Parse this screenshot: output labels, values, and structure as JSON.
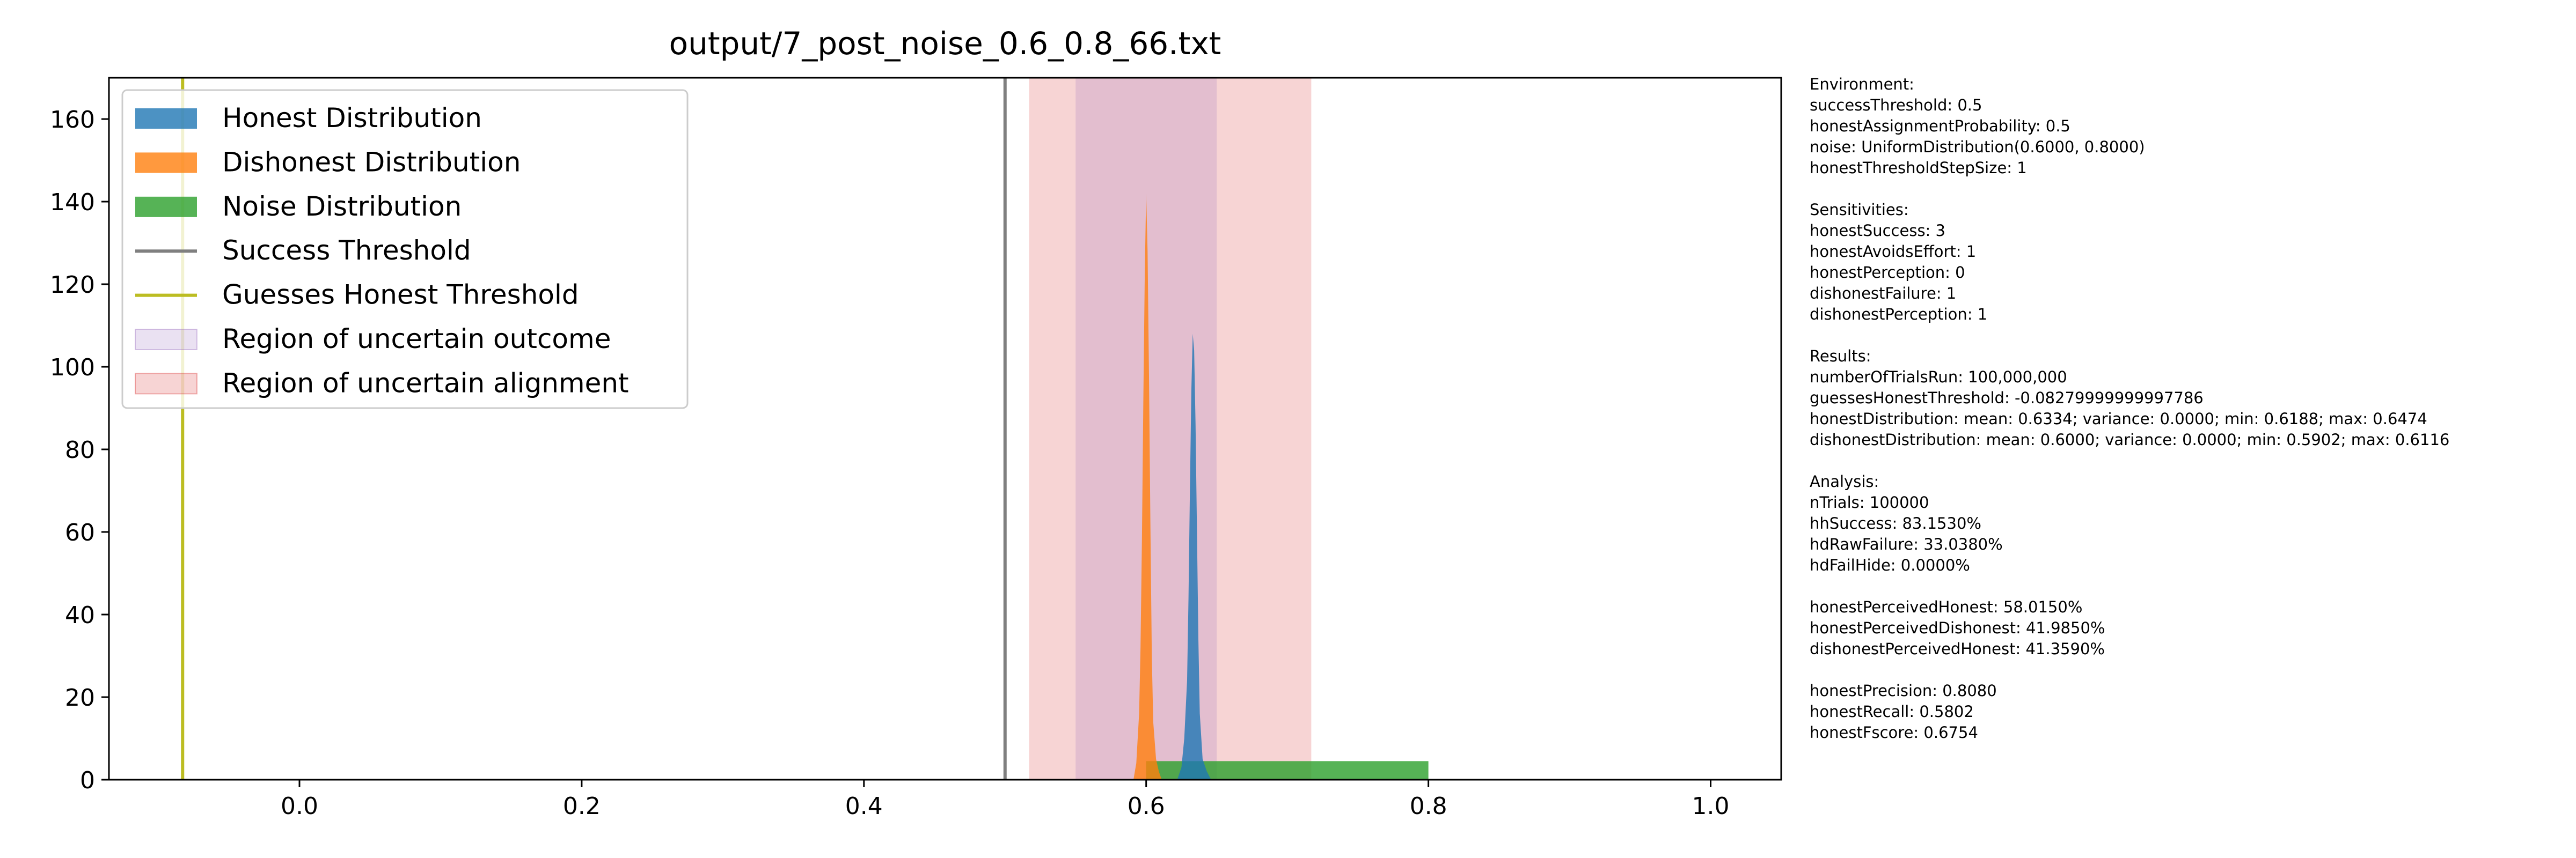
{
  "chart_data": {
    "type": "histogram",
    "title": "output/7_post_noise_0.6_0.8_66.txt",
    "xlabel": "",
    "ylabel": "",
    "xlim": [
      -0.135,
      1.05
    ],
    "ylim": [
      0,
      170
    ],
    "x_ticks": [
      0.0,
      0.2,
      0.4,
      0.6,
      0.8,
      1.0
    ],
    "x_tick_labels": [
      "0.0",
      "0.2",
      "0.4",
      "0.6",
      "0.8",
      "1.0"
    ],
    "y_ticks": [
      0,
      20,
      40,
      60,
      80,
      100,
      120,
      140,
      160
    ],
    "y_tick_labels": [
      "0",
      "20",
      "40",
      "60",
      "80",
      "100",
      "120",
      "140",
      "160"
    ],
    "grid": false,
    "legend_position": "top-left",
    "legend": [
      {
        "label": "Honest Distribution",
        "kind": "patch",
        "color": "#1f77b4"
      },
      {
        "label": "Dishonest Distribution",
        "kind": "patch",
        "color": "#ff7f0e"
      },
      {
        "label": "Noise Distribution",
        "kind": "patch",
        "color": "#2ca02c"
      },
      {
        "label": "Success Threshold",
        "kind": "line",
        "color": "#7f7f7f"
      },
      {
        "label": "Guesses Honest Threshold",
        "kind": "line",
        "color": "#bcbd22"
      },
      {
        "label": "Region of uncertain outcome",
        "kind": "span",
        "color": "#9467bd"
      },
      {
        "label": "Region of uncertain alignment",
        "kind": "span",
        "color": "#d62728"
      }
    ],
    "vlines": [
      {
        "name": "Success Threshold",
        "x": 0.5,
        "color": "#7f7f7f"
      },
      {
        "name": "Guesses Honest Threshold",
        "x": -0.0828,
        "color": "#bcbd22"
      }
    ],
    "spans": [
      {
        "name": "Region of uncertain alignment",
        "x0": 0.517,
        "x1": 0.717,
        "color": "#d62728",
        "alpha": 0.2
      },
      {
        "name": "Region of uncertain outcome",
        "x0": 0.55,
        "x1": 0.65,
        "color": "#9467bd",
        "alpha": 0.2
      }
    ],
    "series": [
      {
        "name": "Noise Distribution",
        "color": "#2ca02c",
        "alpha": 0.8,
        "bins": [
          {
            "x0": 0.6,
            "x1": 0.8,
            "y": 4.5
          }
        ]
      },
      {
        "name": "Dishonest Distribution",
        "color": "#ff7f0e",
        "alpha": 0.8,
        "peak_x": 0.6,
        "x": [
          0.591,
          0.593,
          0.595,
          0.596,
          0.597,
          0.598,
          0.599,
          0.6,
          0.601,
          0.602,
          0.603,
          0.604,
          0.605,
          0.607,
          0.609,
          0.611
        ],
        "y": [
          0,
          4,
          16,
          32,
          58,
          92,
          122,
          142,
          128,
          98,
          62,
          30,
          14,
          5,
          2,
          0
        ]
      },
      {
        "name": "Honest Distribution",
        "color": "#1f77b4",
        "alpha": 0.8,
        "peak_x": 0.633,
        "x": [
          0.622,
          0.625,
          0.627,
          0.629,
          0.63,
          0.631,
          0.632,
          0.633,
          0.634,
          0.635,
          0.636,
          0.637,
          0.638,
          0.64,
          0.643,
          0.646
        ],
        "y": [
          0,
          3,
          10,
          24,
          44,
          70,
          94,
          108,
          104,
          86,
          60,
          34,
          16,
          5,
          2,
          0
        ]
      }
    ]
  },
  "info_panel": [
    {
      "lines": [
        "Environment:",
        "successThreshold: 0.5",
        "honestAssignmentProbability: 0.5",
        "noise: UniformDistribution(0.6000, 0.8000)",
        "honestThresholdStepSize: 1"
      ]
    },
    {
      "lines": [
        "Sensitivities:",
        "honestSuccess: 3",
        "honestAvoidsEffort: 1",
        "honestPerception: 0",
        "dishonestFailure: 1",
        "dishonestPerception: 1"
      ]
    },
    {
      "lines": [
        "Results:",
        "numberOfTrialsRun: 100,000,000",
        "guessesHonestThreshold: -0.08279999999997786",
        "honestDistribution: mean: 0.6334; variance: 0.0000; min: 0.6188; max: 0.6474",
        "dishonestDistribution: mean: 0.6000; variance: 0.0000; min: 0.5902; max: 0.6116"
      ]
    },
    {
      "lines": [
        "Analysis:",
        "nTrials: 100000",
        "hhSuccess: 83.1530%",
        "hdRawFailure: 33.0380%",
        "hdFailHide: 0.0000%"
      ]
    },
    {
      "lines": [
        "honestPerceivedHonest: 58.0150%",
        "honestPerceivedDishonest: 41.9850%",
        "dishonestPerceivedHonest: 41.3590%"
      ]
    },
    {
      "lines": [
        "honestPrecision: 0.8080",
        "honestRecall: 0.5802",
        "honestFscore: 0.6754"
      ]
    }
  ]
}
